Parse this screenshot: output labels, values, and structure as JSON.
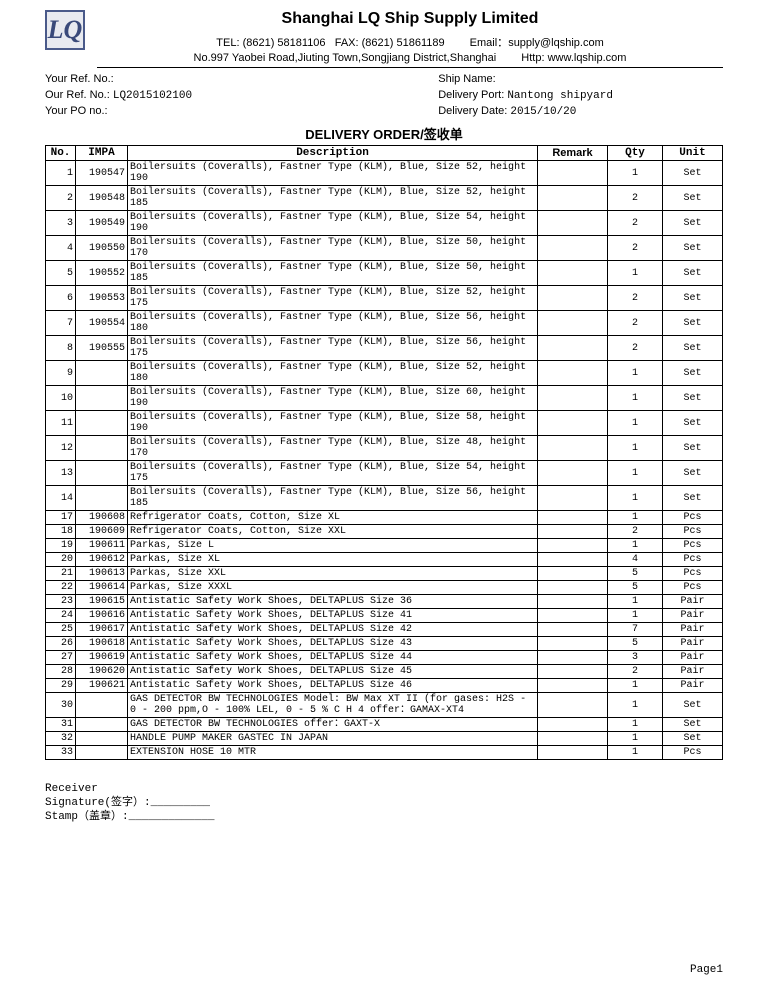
{
  "logo": "LQ",
  "company": "Shanghai LQ Ship Supply Limited",
  "contact": {
    "tel_label": "TEL:",
    "tel": "(8621) 58181106",
    "fax_label": "FAX:",
    "fax": "(8621) 51861189",
    "email_label": "Email：",
    "email": "supply@lqship.com"
  },
  "address": {
    "addr": "No.997 Yaobei Road,Jiuting Town,Songjiang District,Shanghai",
    "http_label": "Http:",
    "http": "www.lqship.com"
  },
  "refs": {
    "your_ref_label": "Your Ref. No.:",
    "your_ref": "",
    "our_ref_label": "Our Ref. No.:",
    "our_ref": "LQ2015102100",
    "your_po_label": "Your PO no.:",
    "your_po": "",
    "ship_name_label": "Ship Name:",
    "ship_name": "",
    "delivery_port_label": "Delivery Port:",
    "delivery_port": "Nantong shipyard",
    "delivery_date_label": "Delivery Date:",
    "delivery_date": "2015/10/20"
  },
  "order_title": "DELIVERY ORDER/签收单",
  "columns": {
    "no": "No.",
    "impa": "IMPA",
    "desc": "Description",
    "remark": "Remark",
    "qty": "Qty",
    "unit": "Unit"
  },
  "rows": [
    {
      "no": "1",
      "impa": "190547",
      "desc": "Boilersuits (Coveralls), Fastner Type (KLM), Blue, Size 52, height 190",
      "remark": "",
      "qty": "1",
      "unit": "Set"
    },
    {
      "no": "2",
      "impa": "190548",
      "desc": "Boilersuits (Coveralls), Fastner Type (KLM), Blue, Size 52, height 185",
      "remark": "",
      "qty": "2",
      "unit": "Set"
    },
    {
      "no": "3",
      "impa": "190549",
      "desc": "Boilersuits (Coveralls), Fastner Type (KLM), Blue, Size 54, height 190",
      "remark": "",
      "qty": "2",
      "unit": "Set"
    },
    {
      "no": "4",
      "impa": "190550",
      "desc": "Boilersuits (Coveralls), Fastner Type (KLM), Blue, Size 50, height 170",
      "remark": "",
      "qty": "2",
      "unit": "Set"
    },
    {
      "no": "5",
      "impa": "190552",
      "desc": "Boilersuits (Coveralls), Fastner Type (KLM), Blue, Size 50, height 185",
      "remark": "",
      "qty": "1",
      "unit": "Set"
    },
    {
      "no": "6",
      "impa": "190553",
      "desc": "Boilersuits (Coveralls), Fastner Type (KLM), Blue, Size 52, height 175",
      "remark": "",
      "qty": "2",
      "unit": "Set"
    },
    {
      "no": "7",
      "impa": "190554",
      "desc": "Boilersuits (Coveralls), Fastner Type (KLM), Blue, Size 56, height 180",
      "remark": "",
      "qty": "2",
      "unit": "Set"
    },
    {
      "no": "8",
      "impa": "190555",
      "desc": "Boilersuits (Coveralls), Fastner Type (KLM), Blue, Size 56, height 175",
      "remark": "",
      "qty": "2",
      "unit": "Set"
    },
    {
      "no": "9",
      "impa": "",
      "desc": "Boilersuits (Coveralls), Fastner Type (KLM), Blue, Size 52, height 180",
      "remark": "",
      "qty": "1",
      "unit": "Set"
    },
    {
      "no": "10",
      "impa": "",
      "desc": "Boilersuits (Coveralls), Fastner Type (KLM), Blue, Size 60, height 190",
      "remark": "",
      "qty": "1",
      "unit": "Set"
    },
    {
      "no": "11",
      "impa": "",
      "desc": "Boilersuits (Coveralls), Fastner Type (KLM), Blue, Size 58, height 190",
      "remark": "",
      "qty": "1",
      "unit": "Set"
    },
    {
      "no": "12",
      "impa": "",
      "desc": "Boilersuits (Coveralls), Fastner Type (KLM), Blue, Size 48, height 170",
      "remark": "",
      "qty": "1",
      "unit": "Set"
    },
    {
      "no": "13",
      "impa": "",
      "desc": "Boilersuits (Coveralls), Fastner Type (KLM), Blue, Size 54, height 175",
      "remark": "",
      "qty": "1",
      "unit": "Set"
    },
    {
      "no": "14",
      "impa": "",
      "desc": "Boilersuits (Coveralls), Fastner Type (KLM), Blue, Size 56, height 185",
      "remark": "",
      "qty": "1",
      "unit": "Set"
    },
    {
      "no": "17",
      "impa": "190608",
      "desc": "Refrigerator Coats, Cotton, Size XL",
      "remark": "",
      "qty": "1",
      "unit": "Pcs"
    },
    {
      "no": "18",
      "impa": "190609",
      "desc": "Refrigerator Coats, Cotton, Size XXL",
      "remark": "",
      "qty": "2",
      "unit": "Pcs"
    },
    {
      "no": "19",
      "impa": "190611",
      "desc": "Parkas, Size L",
      "remark": "",
      "qty": "1",
      "unit": "Pcs"
    },
    {
      "no": "20",
      "impa": "190612",
      "desc": "Parkas, Size XL",
      "remark": "",
      "qty": "4",
      "unit": "Pcs"
    },
    {
      "no": "21",
      "impa": "190613",
      "desc": "Parkas, Size XXL",
      "remark": "",
      "qty": "5",
      "unit": "Pcs"
    },
    {
      "no": "22",
      "impa": "190614",
      "desc": "Parkas, Size XXXL",
      "remark": "",
      "qty": "5",
      "unit": "Pcs"
    },
    {
      "no": "23",
      "impa": "190615",
      "desc": "Antistatic Safety Work Shoes, DELTAPLUS Size 36",
      "remark": "",
      "qty": "1",
      "unit": "Pair"
    },
    {
      "no": "24",
      "impa": "190616",
      "desc": "Antistatic Safety Work Shoes, DELTAPLUS Size 41",
      "remark": "",
      "qty": "1",
      "unit": "Pair"
    },
    {
      "no": "25",
      "impa": "190617",
      "desc": "Antistatic Safety Work Shoes, DELTAPLUS Size 42",
      "remark": "",
      "qty": "7",
      "unit": "Pair"
    },
    {
      "no": "26",
      "impa": "190618",
      "desc": "Antistatic Safety Work Shoes, DELTAPLUS Size 43",
      "remark": "",
      "qty": "5",
      "unit": "Pair"
    },
    {
      "no": "27",
      "impa": "190619",
      "desc": "Antistatic Safety Work Shoes, DELTAPLUS Size 44",
      "remark": "",
      "qty": "3",
      "unit": "Pair"
    },
    {
      "no": "28",
      "impa": "190620",
      "desc": "Antistatic Safety Work Shoes, DELTAPLUS Size 45",
      "remark": "",
      "qty": "2",
      "unit": "Pair"
    },
    {
      "no": "29",
      "impa": "190621",
      "desc": "Antistatic Safety Work Shoes, DELTAPLUS Size 46",
      "remark": "",
      "qty": "1",
      "unit": "Pair"
    },
    {
      "no": "30",
      "impa": "",
      "desc": "GAS DETECTOR BW TECHNOLOGIES Model: BW Max XT II (for gases: H2S - 0 - 200 ppm,O - 100% LEL, 0 - 5 % C H 4   offer：GAMAX-XT4",
      "remark": "",
      "qty": "1",
      "unit": "Set"
    },
    {
      "no": "31",
      "impa": "",
      "desc": "GAS DETECTOR BW TECHNOLOGIES offer：GAXT-X",
      "remark": "",
      "qty": "1",
      "unit": "Set"
    },
    {
      "no": "32",
      "impa": "",
      "desc": "HANDLE PUMP MAKER GASTEC IN JAPAN",
      "remark": "",
      "qty": "1",
      "unit": "Set"
    },
    {
      "no": "33",
      "impa": "",
      "desc": "EXTENSION HOSE 10 MTR",
      "remark": "",
      "qty": "1",
      "unit": "Pcs"
    }
  ],
  "footer": {
    "receiver": "Receiver",
    "signature": "Signature(签字）:_________",
    "stamp": "Stamp（盖章）:_____________"
  },
  "page": "Page1"
}
